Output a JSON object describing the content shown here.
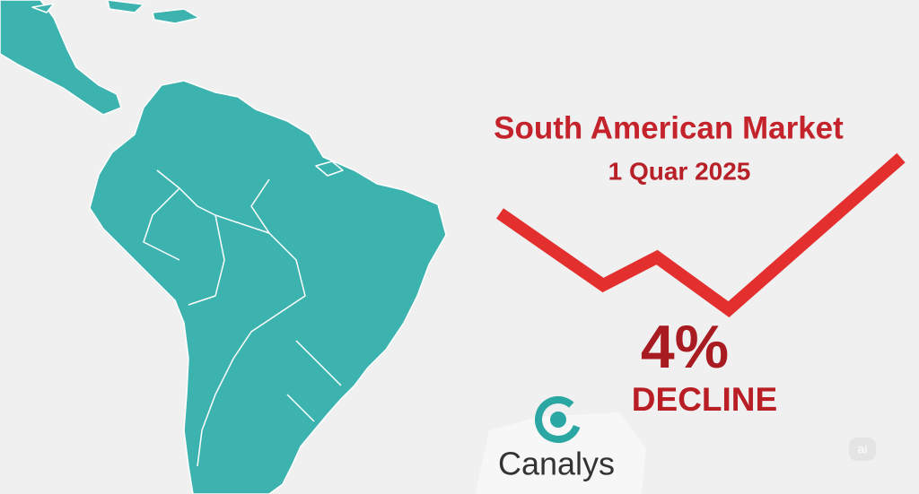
{
  "header": {
    "title": "South American Market",
    "subtitle": "1 Quar 2025"
  },
  "stat": {
    "value": "4%",
    "label": "DECLINE"
  },
  "logo": {
    "name": "Canalys"
  },
  "badge": {
    "text": "ai"
  }
}
